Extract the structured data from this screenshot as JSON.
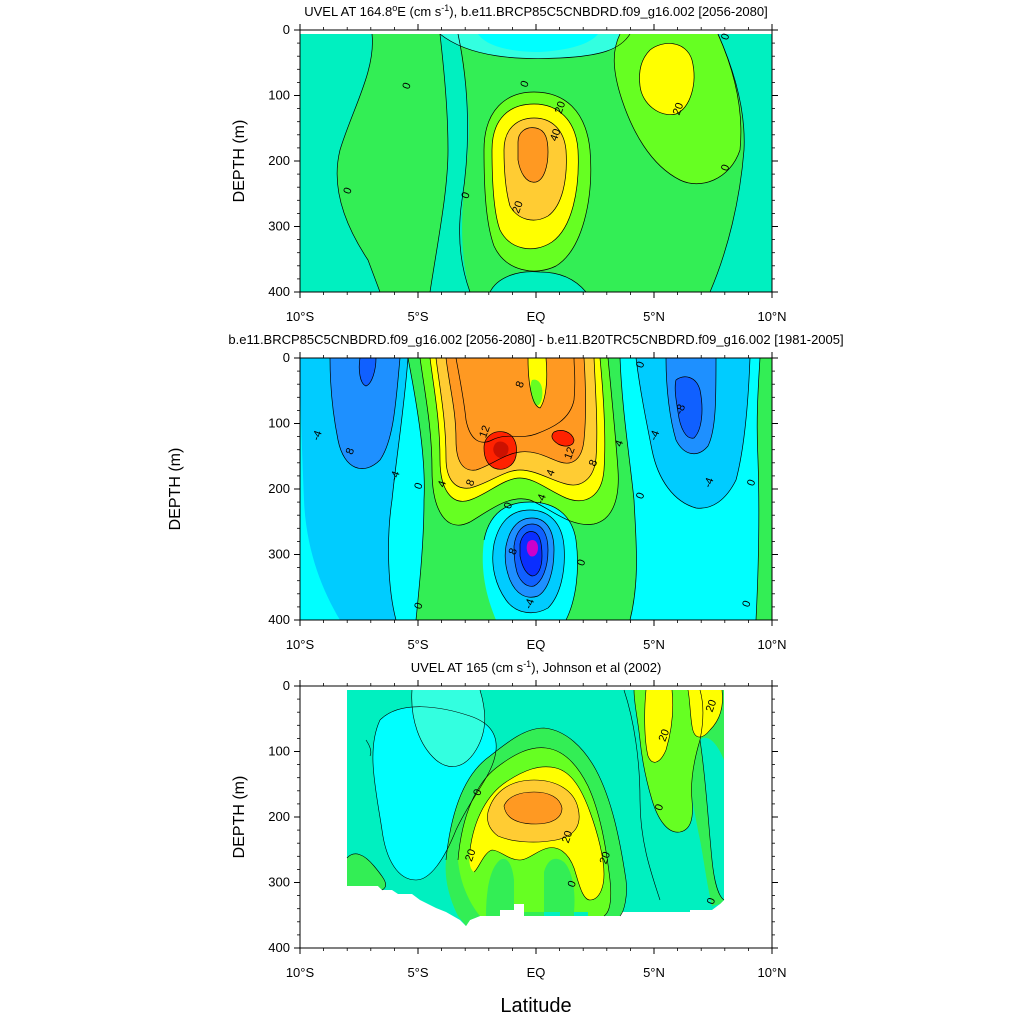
{
  "colors": {
    "cyan": "#00ffff",
    "aqua_light": "#33ffe0",
    "teal_green": "#00f0c0",
    "green": "#33ee55",
    "lime": "#66ff22",
    "yellow": "#ffff00",
    "gold": "#ffcc33",
    "orange": "#ff9922",
    "red": "#ff2200",
    "dark_red": "#cc1100",
    "sky": "#00ccff",
    "blue_mid": "#1e90ff",
    "blue": "#1060ff",
    "blue_dark": "#0a2eff",
    "magenta": "#cc00cc"
  },
  "chart_data": [
    {
      "type": "contour",
      "title_pre": "UVEL AT 164.8",
      "title_sup1": "o",
      "title_mid": "E (cm s",
      "title_sup2": "-1",
      "title_post": "), b.e11.BRCP85C5CNBDRD.f09_g16.002 [2056-2080]",
      "ylabel": "DEPTH (m)",
      "ylim": [
        400,
        0
      ],
      "xlim": [
        -10,
        10
      ],
      "y_ticks": [
        "0",
        "100",
        "200",
        "300",
        "400"
      ],
      "x_ticks": [
        "10°S",
        "5°S",
        "EQ",
        "5°N",
        "10°N"
      ],
      "contour_labels": [
        {
          "text": "0",
          "lat": -5.5,
          "depth": 85
        },
        {
          "text": "0",
          "lat": -8.0,
          "depth": 245
        },
        {
          "text": "0",
          "lat": -3.0,
          "depth": 252
        },
        {
          "text": "0",
          "lat": -0.5,
          "depth": 82
        },
        {
          "text": "20",
          "lat": 1.0,
          "depth": 118
        },
        {
          "text": "40",
          "lat": 0.8,
          "depth": 160
        },
        {
          "text": "20",
          "lat": -0.8,
          "depth": 270
        },
        {
          "text": "20",
          "lat": 6.0,
          "depth": 120
        },
        {
          "text": "0",
          "lat": 8.0,
          "depth": 10
        },
        {
          "text": "0",
          "lat": 8.0,
          "depth": 210
        }
      ]
    },
    {
      "type": "contour",
      "title": "b.e11.BRCP85C5CNBDRD.f09_g16.002 [2056-2080] - b.e11.B20TRC5CNBDRD.f09_g16.002 [1981-2005]",
      "ylabel": "DEPTH (m)",
      "ylim": [
        400,
        0
      ],
      "xlim": [
        -10,
        10
      ],
      "y_ticks": [
        "0",
        "100",
        "200",
        "300",
        "400"
      ],
      "x_ticks": [
        "10°S",
        "5°S",
        "EQ",
        "5°N",
        "10°N"
      ],
      "contour_labels": [
        {
          "text": "-4",
          "lat": -9.3,
          "depth": 118
        },
        {
          "text": "8",
          "lat": -7.9,
          "depth": 142
        },
        {
          "text": "-4",
          "lat": -6.0,
          "depth": 180
        },
        {
          "text": "0",
          "lat": -5.0,
          "depth": 195
        },
        {
          "text": "4",
          "lat": -4.0,
          "depth": 192
        },
        {
          "text": "8",
          "lat": -2.8,
          "depth": 190
        },
        {
          "text": "12",
          "lat": -2.2,
          "depth": 112
        },
        {
          "text": "8",
          "lat": -0.7,
          "depth": 40
        },
        {
          "text": "12",
          "lat": 1.4,
          "depth": 145
        },
        {
          "text": "8",
          "lat": 2.4,
          "depth": 160
        },
        {
          "text": "4",
          "lat": 3.5,
          "depth": 130
        },
        {
          "text": "4",
          "lat": 0.6,
          "depth": 175
        },
        {
          "text": "0",
          "lat": -1.2,
          "depth": 225
        },
        {
          "text": "-4",
          "lat": 0.2,
          "depth": 215
        },
        {
          "text": "8",
          "lat": -1.0,
          "depth": 295
        },
        {
          "text": "-4",
          "lat": -0.3,
          "depth": 375
        },
        {
          "text": "0",
          "lat": 1.9,
          "depth": 312
        },
        {
          "text": "0",
          "lat": 4.4,
          "depth": 10
        },
        {
          "text": "0",
          "lat": 4.4,
          "depth": 210
        },
        {
          "text": "-4",
          "lat": 5.0,
          "depth": 118
        },
        {
          "text": "-8",
          "lat": 6.1,
          "depth": 78
        },
        {
          "text": "-4",
          "lat": 7.3,
          "depth": 190
        },
        {
          "text": "0",
          "lat": 9.1,
          "depth": 190
        },
        {
          "text": "0",
          "lat": -5.0,
          "depth": 378
        },
        {
          "text": "0",
          "lat": 8.9,
          "depth": 375
        }
      ]
    },
    {
      "type": "contour",
      "title_pre": "UVEL AT 165 (cm s",
      "title_sup": "-1",
      "title_post": "), Johnson et al (2002)",
      "ylabel": "DEPTH (m)",
      "xlabel": "Latitude",
      "ylim": [
        400,
        0
      ],
      "xlim": [
        -10,
        10
      ],
      "y_ticks": [
        "0",
        "100",
        "200",
        "300",
        "400"
      ],
      "x_ticks": [
        "10°S",
        "5°S",
        "EQ",
        "5°N",
        "10°N"
      ],
      "contour_labels": [
        {
          "text": "0",
          "lat": -2.5,
          "depth": 162
        },
        {
          "text": "20",
          "lat": 1.3,
          "depth": 230
        },
        {
          "text": "20",
          "lat": -2.8,
          "depth": 258
        },
        {
          "text": "20",
          "lat": 2.9,
          "depth": 262
        },
        {
          "text": "0",
          "lat": 1.5,
          "depth": 302
        },
        {
          "text": "20",
          "lat": 5.4,
          "depth": 75
        },
        {
          "text": "20",
          "lat": 7.4,
          "depth": 30
        },
        {
          "text": "0",
          "lat": 5.2,
          "depth": 185
        },
        {
          "text": "0",
          "lat": 7.4,
          "depth": 328
        }
      ]
    }
  ]
}
